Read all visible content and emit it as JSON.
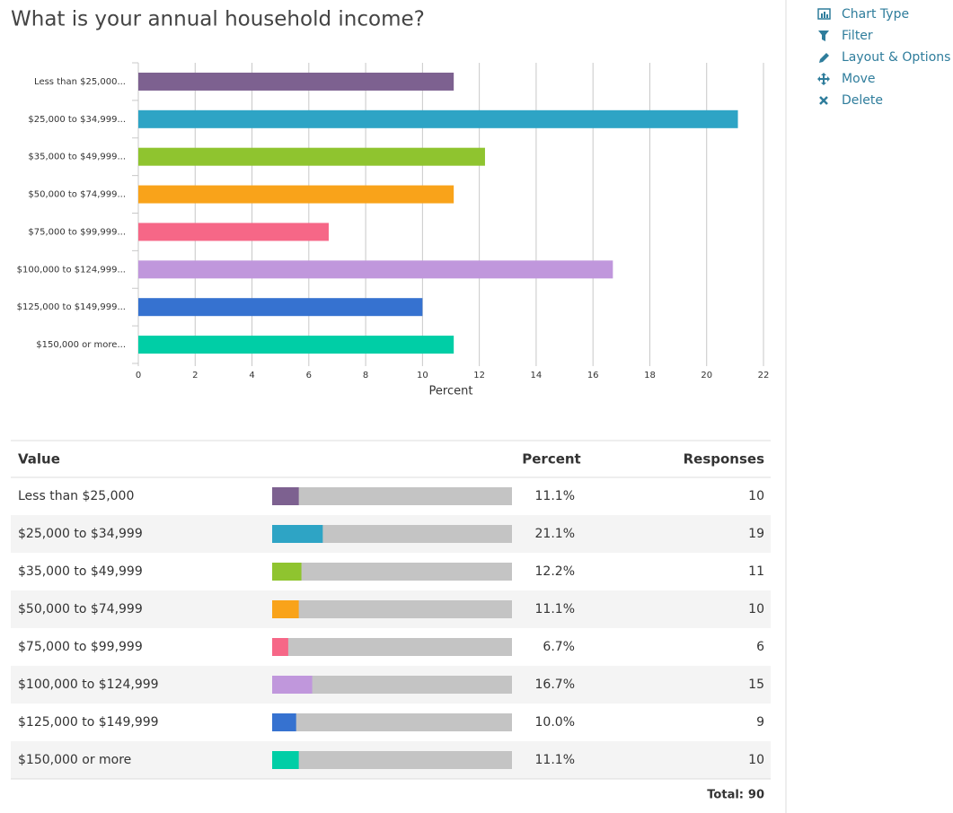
{
  "chart_data": {
    "type": "hbar",
    "title": "What is your annual household income?",
    "categories": [
      "Less than $25,000...",
      "$25,000 to $34,999...",
      "$35,000 to $49,999...",
      "$50,000 to $74,999...",
      "$75,000 to $99,999...",
      "$100,000 to $124,999...",
      "$125,000 to $149,999...",
      "$150,000 or more..."
    ],
    "values": [
      11.1,
      21.1,
      12.2,
      11.1,
      6.7,
      16.7,
      10.0,
      11.1
    ],
    "colors": [
      "#7d6190",
      "#2ea4c5",
      "#8fc42f",
      "#f9a31a",
      "#f66787",
      "#c097dc",
      "#3672d0",
      "#00cea6"
    ],
    "xlabel": "Percent",
    "xlim": [
      0,
      22
    ],
    "xticks": [
      0,
      2,
      4,
      6,
      8,
      10,
      12,
      14,
      16,
      18,
      20,
      22
    ],
    "grid": true
  },
  "table": {
    "headers": [
      "Value",
      "Percent",
      "Responses"
    ],
    "rows": [
      {
        "value": "Less than $25,000",
        "percent": "11.1%",
        "responses": 10
      },
      {
        "value": "$25,000 to $34,999",
        "percent": "21.1%",
        "responses": 19
      },
      {
        "value": "$35,000 to $49,999",
        "percent": "12.2%",
        "responses": 11
      },
      {
        "value": "$50,000 to $74,999",
        "percent": "11.1%",
        "responses": 10
      },
      {
        "value": "$75,000 to $99,999",
        "percent": "6.7%",
        "responses": 6
      },
      {
        "value": "$100,000 to $124,999",
        "percent": "16.7%",
        "responses": 15
      },
      {
        "value": "$125,000 to $149,999",
        "percent": "10.0%",
        "responses": 9
      },
      {
        "value": "$150,000 or more",
        "percent": "11.1%",
        "responses": 10
      }
    ],
    "total_label": "Total:",
    "total": 90
  },
  "menu": [
    "Chart Type",
    "Filter",
    "Layout & Options",
    "Move",
    "Delete"
  ]
}
